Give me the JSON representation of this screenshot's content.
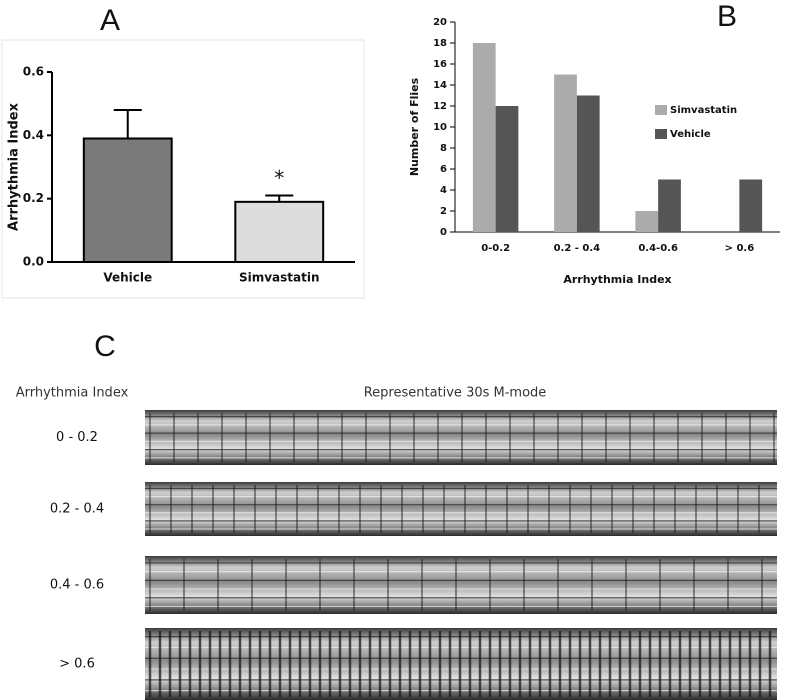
{
  "chart_data": [
    {
      "type": "bar",
      "panel": "A",
      "ylabel": "Arrhythmia Index",
      "categories": [
        "Vehicle",
        "Simvastatin"
      ],
      "values": [
        0.39,
        0.19
      ],
      "errors": [
        0.09,
        0.02
      ],
      "colors": [
        "#7a7a7a",
        "#dcdcdc"
      ],
      "annotation": "*",
      "ylim": [
        0,
        0.6
      ],
      "yticks": [
        {
          "value": 0,
          "label": "0.0"
        },
        0.2,
        0.4,
        0.6
      ]
    },
    {
      "type": "bar",
      "panel": "B",
      "xlabel": "Arrhythmia Index",
      "ylabel": "Number of Flies",
      "categories": [
        "0-0.2",
        "0.2 - 0.4",
        "0.4-0.6",
        "> 0.6"
      ],
      "series": [
        {
          "name": "Simvastatin",
          "color": "#ababab",
          "values": [
            18,
            15,
            2,
            0
          ]
        },
        {
          "name": "Vehicle",
          "color": "#555555",
          "values": [
            12,
            13,
            5,
            5
          ]
        }
      ],
      "ylim": [
        0,
        20
      ],
      "yticks": [
        0,
        2,
        4,
        6,
        8,
        10,
        12,
        14,
        16,
        18,
        20
      ]
    }
  ],
  "panel_c": {
    "label": "C",
    "row_header": "Arrhythmia Index",
    "image_header": "Representative 30s M-mode",
    "rows": [
      "0 - 0.2",
      "0.2 - 0.4",
      "0.4 - 0.6",
      "> 0.6"
    ]
  }
}
